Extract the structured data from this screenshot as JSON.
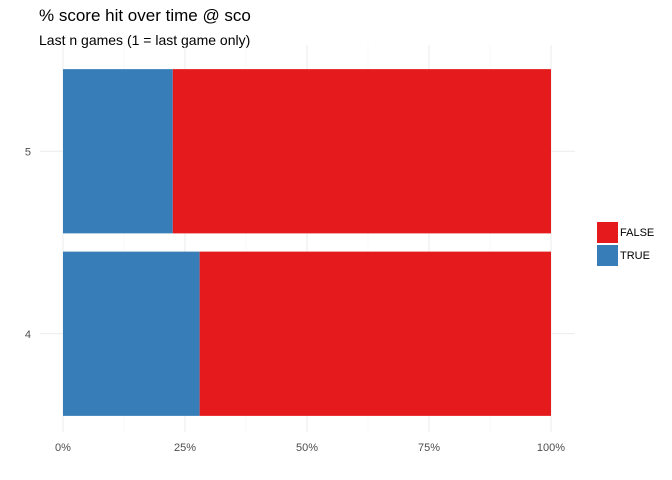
{
  "chart_data": {
    "type": "bar",
    "orientation": "horizontal",
    "stacked": true,
    "title": "% score hit over time @ sco",
    "subtitle": "Last n games (1 = last game only)",
    "xlabel": "",
    "ylabel": "",
    "categories": [
      "5",
      "4"
    ],
    "series": [
      {
        "name": "TRUE",
        "values": [
          22.5,
          28
        ],
        "color": "#377EB8"
      },
      {
        "name": "FALSE",
        "values": [
          77.5,
          72
        ],
        "color": "#E41A1C"
      }
    ],
    "xlim": [
      0,
      100
    ],
    "x_ticks": [
      "0%",
      "25%",
      "50%",
      "75%",
      "100%"
    ],
    "legend": {
      "position": "right",
      "order": [
        "FALSE",
        "TRUE"
      ]
    }
  }
}
